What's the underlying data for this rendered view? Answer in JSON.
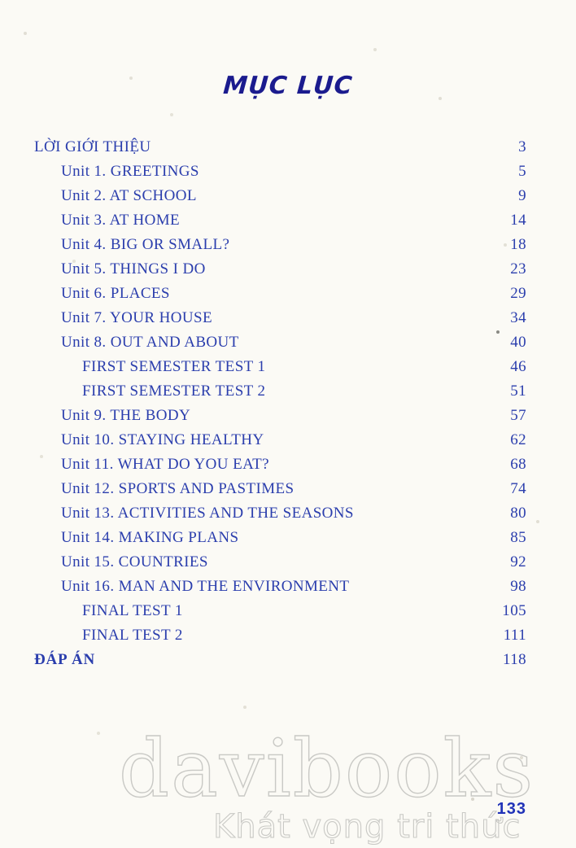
{
  "title": "MỤC LỤC",
  "toc": {
    "entries": [
      {
        "label": "LỜI GIỚI THIỆU",
        "page": "3",
        "indent": 0,
        "bold": false
      },
      {
        "label": "Unit 1. GREETINGS",
        "page": "5",
        "indent": 1,
        "bold": false
      },
      {
        "label": "Unit 2. AT SCHOOL",
        "page": "9",
        "indent": 1,
        "bold": false
      },
      {
        "label": "Unit 3. AT HOME",
        "page": "14",
        "indent": 1,
        "bold": false
      },
      {
        "label": "Unit 4. BIG OR SMALL?",
        "page": "18",
        "indent": 1,
        "bold": false
      },
      {
        "label": "Unit 5. THINGS I DO",
        "page": "23",
        "indent": 1,
        "bold": false
      },
      {
        "label": "Unit 6. PLACES",
        "page": "29",
        "indent": 1,
        "bold": false
      },
      {
        "label": "Unit 7. YOUR HOUSE",
        "page": "34",
        "indent": 1,
        "bold": false
      },
      {
        "label": "Unit 8. OUT AND ABOUT",
        "page": "40",
        "indent": 1,
        "bold": false
      },
      {
        "label": "FIRST SEMESTER TEST 1",
        "page": "46",
        "indent": 2,
        "bold": false
      },
      {
        "label": "FIRST SEMESTER TEST 2",
        "page": "51",
        "indent": 2,
        "bold": false
      },
      {
        "label": "Unit 9. THE BODY",
        "page": "57",
        "indent": 1,
        "bold": false
      },
      {
        "label": "Unit 10. STAYING HEALTHY",
        "page": "62",
        "indent": 1,
        "bold": false
      },
      {
        "label": "Unit 11. WHAT DO YOU EAT?",
        "page": "68",
        "indent": 1,
        "bold": false
      },
      {
        "label": "Unit 12. SPORTS AND PASTIMES",
        "page": "74",
        "indent": 1,
        "bold": false
      },
      {
        "label": "Unit 13. ACTIVITIES AND THE SEASONS",
        "page": "80",
        "indent": 1,
        "bold": false
      },
      {
        "label": "Unit 14. MAKING PLANS",
        "page": "85",
        "indent": 1,
        "bold": false
      },
      {
        "label": "Unit 15. COUNTRIES",
        "page": "92",
        "indent": 1,
        "bold": false
      },
      {
        "label": "Unit 16. MAN AND THE ENVIRONMENT",
        "page": "98",
        "indent": 1,
        "bold": false
      },
      {
        "label": "FINAL TEST 1",
        "page": "105",
        "indent": 2,
        "bold": false
      },
      {
        "label": "FINAL TEST 2",
        "page": "111",
        "indent": 2,
        "bold": false
      },
      {
        "label": "ĐÁP ÁN",
        "page": "118",
        "indent": 0,
        "bold": true
      }
    ]
  },
  "watermark": {
    "brand": "davibooks",
    "tagline": "Khát vọng tri thức"
  },
  "footer": {
    "page_number": "133"
  },
  "colors": {
    "body_text": "#2b3ead",
    "title": "#1b1b8e",
    "page_number": "#2133b8",
    "background": "#fbfaf5",
    "watermark_outline": "#c9c9c5"
  }
}
